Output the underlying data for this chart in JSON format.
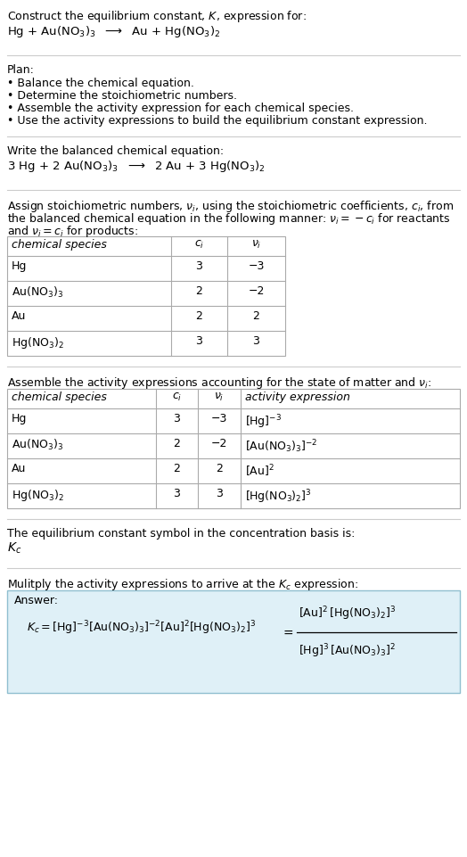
{
  "bg_color": "#ffffff",
  "text_color": "#000000",
  "title_line1": "Construct the equilibrium constant, $K$, expression for:",
  "reaction_unbalanced": "Hg + Au(NO$_3$)$_3$  $\\longrightarrow$  Au + Hg(NO$_3$)$_2$",
  "plan_header": "Plan:",
  "plan_items": [
    "• Balance the chemical equation.",
    "• Determine the stoichiometric numbers.",
    "• Assemble the activity expression for each chemical species.",
    "• Use the activity expressions to build the equilibrium constant expression."
  ],
  "balanced_header": "Write the balanced chemical equation:",
  "reaction_balanced": "3 Hg + 2 Au(NO$_3$)$_3$  $\\longrightarrow$  2 Au + 3 Hg(NO$_3$)$_2$",
  "stoich_header_l1": "Assign stoichiometric numbers, $\\nu_i$, using the stoichiometric coefficients, $c_i$, from",
  "stoich_header_l2": "the balanced chemical equation in the following manner: $\\nu_i = -c_i$ for reactants",
  "stoich_header_l3": "and $\\nu_i = c_i$ for products:",
  "table1_headers": [
    "chemical species",
    "$c_i$",
    "$\\nu_i$"
  ],
  "table1_rows": [
    [
      "Hg",
      "3",
      "−3"
    ],
    [
      "Au(NO$_3$)$_3$",
      "2",
      "−2"
    ],
    [
      "Au",
      "2",
      "2"
    ],
    [
      "Hg(NO$_3$)$_2$",
      "3",
      "3"
    ]
  ],
  "assemble_header": "Assemble the activity expressions accounting for the state of matter and $\\nu_i$:",
  "table2_headers": [
    "chemical species",
    "$c_i$",
    "$\\nu_i$",
    "activity expression"
  ],
  "table2_rows": [
    [
      "Hg",
      "3",
      "−3",
      "[Hg]$^{-3}$"
    ],
    [
      "Au(NO$_3$)$_3$",
      "2",
      "−2",
      "[Au(NO$_3$)$_3$]$^{-2}$"
    ],
    [
      "Au",
      "2",
      "2",
      "[Au]$^2$"
    ],
    [
      "Hg(NO$_3$)$_2$",
      "3",
      "3",
      "[Hg(NO$_3$)$_2$]$^3$"
    ]
  ],
  "Kc_header": "The equilibrium constant symbol in the concentration basis is:",
  "Kc_symbol": "$K_c$",
  "multiply_header": "Mulitply the activity expressions to arrive at the $K_c$ expression:",
  "answer_label": "Answer:",
  "answer_box_color": "#dff0f7",
  "answer_box_border": "#90bfd0"
}
